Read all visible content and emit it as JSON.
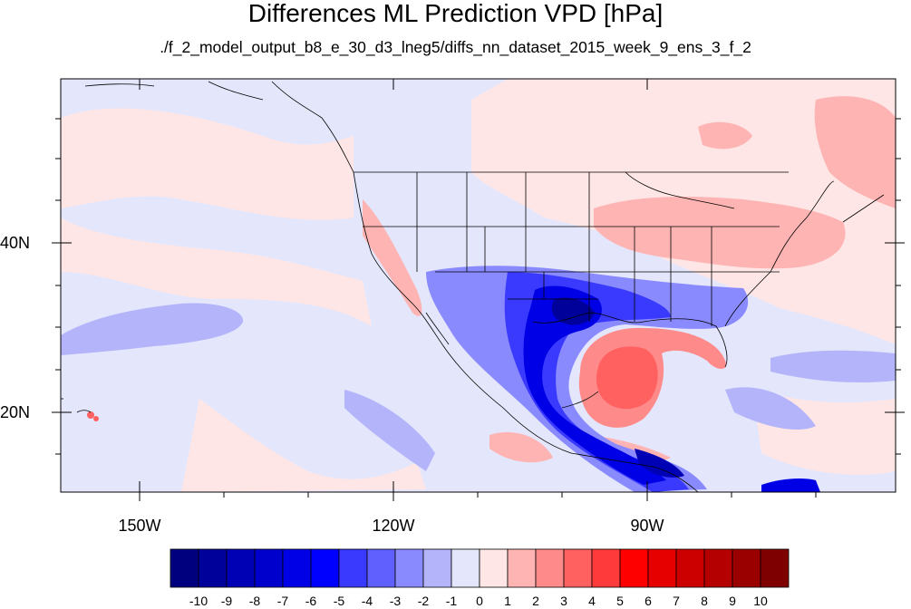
{
  "title": "Differences ML Prediction VPD [hPa]",
  "subtitle": "./f_2_model_output_b8_e_30_d3_lneg5/diffs_nn_dataset_2015_week_9_ens_3_f_2",
  "map": {
    "lat_labels": [
      "40N",
      "20N"
    ],
    "lon_labels": [
      "150W",
      "120W",
      "90W"
    ],
    "background_color": "#e4e6fb"
  },
  "colorbar": {
    "labels": [
      "-10",
      "-9",
      "-8",
      "-7",
      "-6",
      "-5",
      "-4",
      "-3",
      "-2",
      "-1",
      "0",
      "1",
      "2",
      "3",
      "4",
      "5",
      "6",
      "7",
      "8",
      "9",
      "10"
    ],
    "colors": [
      "#00007f",
      "#00009a",
      "#0000b4",
      "#0000cd",
      "#0000e6",
      "#0000ff",
      "#3a3aff",
      "#6060ff",
      "#8a8aff",
      "#b4b4fb",
      "#e4e6fb",
      "#ffe6e6",
      "#ffb4b4",
      "#ff8a8a",
      "#ff6060",
      "#ff3a3a",
      "#ff0000",
      "#e60000",
      "#cd0000",
      "#b40000",
      "#9a0000",
      "#7f0000"
    ]
  }
}
